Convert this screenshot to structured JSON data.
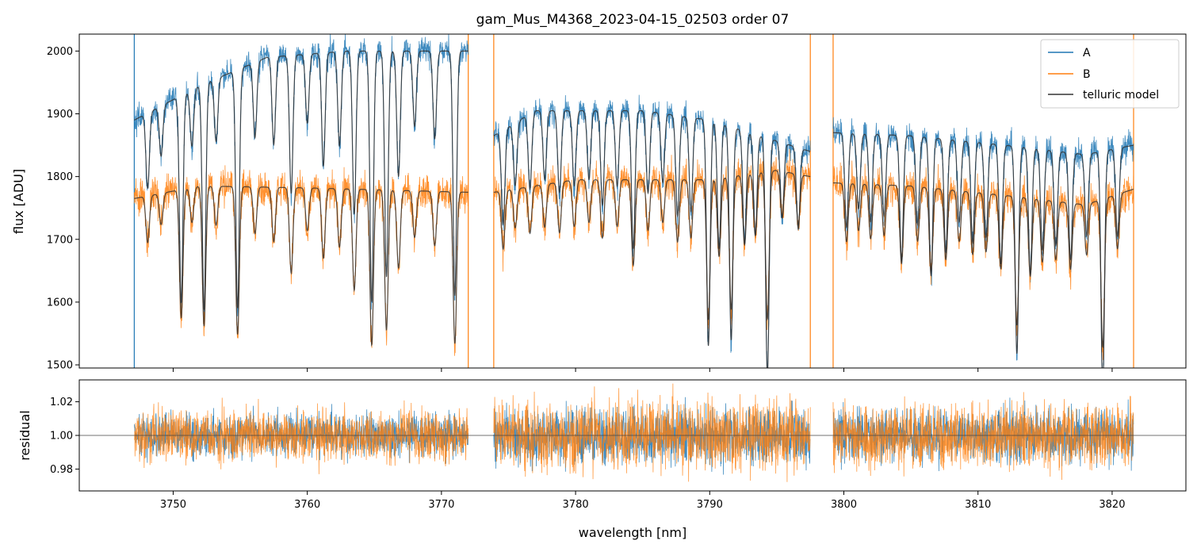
{
  "chart_data": [
    {
      "type": "line",
      "title": "gam_Mus_M4368_2023-04-15_02503  order 07",
      "xlabel": "",
      "ylabel": "flux [ADU]",
      "xlim": [
        3743.0,
        3825.5
      ],
      "ylim": [
        1495,
        2027
      ],
      "yticks": [
        1500,
        1600,
        1700,
        1800,
        1900,
        2000
      ],
      "xticks": [
        3750,
        3760,
        3770,
        3780,
        3790,
        3800,
        3810,
        3820
      ],
      "legend": {
        "placement": "top-right",
        "entries": [
          "A",
          "B",
          "telluric model"
        ]
      },
      "colors": {
        "A": "#1f77b4",
        "B": "#ff7f0e",
        "model": "#333333"
      },
      "segments": [
        [
          3747.1,
          3772.0
        ],
        [
          3773.9,
          3797.5
        ],
        [
          3799.2,
          3821.6
        ]
      ],
      "series": [
        {
          "name": "A",
          "continuum": [
            [
              3747.1,
              1890
            ],
            [
              3752,
              1945
            ],
            [
              3757,
              1990
            ],
            [
              3763,
              2000
            ],
            [
              3772.0,
              2000
            ],
            [
              3773.9,
              1865
            ],
            [
              3777,
              1905
            ],
            [
              3785,
              1905
            ],
            [
              3790,
              1890
            ],
            [
              3797.5,
              1840
            ],
            [
              3799.2,
              1870
            ],
            [
              3805,
              1865
            ],
            [
              3812,
              1850
            ],
            [
              3818,
              1835
            ],
            [
              3821.6,
              1850
            ]
          ],
          "noise": 16
        },
        {
          "name": "B",
          "continuum": [
            [
              3747.1,
              1765
            ],
            [
              3752,
              1785
            ],
            [
              3760,
              1782
            ],
            [
              3772.0,
              1775
            ],
            [
              3773.9,
              1775
            ],
            [
              3780,
              1795
            ],
            [
              3790,
              1795
            ],
            [
              3795,
              1810
            ],
            [
              3797.5,
              1800
            ],
            [
              3799.2,
              1790
            ],
            [
              3805,
              1785
            ],
            [
              3812,
              1770
            ],
            [
              3818,
              1755
            ],
            [
              3821.6,
              1780
            ]
          ],
          "noise": 20
        },
        {
          "name": "telluric model"
        }
      ],
      "absorption_lines": [
        [
          3748.1,
          120
        ],
        [
          3749.1,
          80
        ],
        [
          3750.6,
          330
        ],
        [
          3751.4,
          90
        ],
        [
          3752.3,
          360
        ],
        [
          3753.2,
          100
        ],
        [
          3754.8,
          380
        ],
        [
          3756.1,
          120
        ],
        [
          3757.5,
          140
        ],
        [
          3758.8,
          220
        ],
        [
          3760.0,
          110
        ],
        [
          3761.2,
          180
        ],
        [
          3762.4,
          150
        ],
        [
          3763.5,
          260
        ],
        [
          3764.8,
          400
        ],
        [
          3765.9,
          360
        ],
        [
          3766.8,
          200
        ],
        [
          3768.0,
          120
        ],
        [
          3769.5,
          140
        ],
        [
          3771.0,
          390
        ],
        [
          3774.6,
          150
        ],
        [
          3775.5,
          100
        ],
        [
          3776.6,
          120
        ],
        [
          3777.7,
          110
        ],
        [
          3778.8,
          130
        ],
        [
          3779.9,
          120
        ],
        [
          3781.0,
          110
        ],
        [
          3782.0,
          150
        ],
        [
          3783.1,
          120
        ],
        [
          3784.3,
          220
        ],
        [
          3785.4,
          130
        ],
        [
          3786.5,
          110
        ],
        [
          3787.6,
          160
        ],
        [
          3788.6,
          150
        ],
        [
          3789.9,
          360
        ],
        [
          3790.7,
          200
        ],
        [
          3791.6,
          340
        ],
        [
          3792.6,
          180
        ],
        [
          3793.4,
          160
        ],
        [
          3794.3,
          380
        ],
        [
          3795.4,
          120
        ],
        [
          3796.6,
          130
        ],
        [
          3800.2,
          150
        ],
        [
          3801.1,
          120
        ],
        [
          3802.0,
          140
        ],
        [
          3803.0,
          130
        ],
        [
          3804.3,
          200
        ],
        [
          3805.5,
          140
        ],
        [
          3806.5,
          220
        ],
        [
          3807.6,
          180
        ],
        [
          3808.6,
          130
        ],
        [
          3809.6,
          160
        ],
        [
          3810.6,
          150
        ],
        [
          3811.7,
          190
        ],
        [
          3812.9,
          330
        ],
        [
          3813.9,
          200
        ],
        [
          3814.8,
          160
        ],
        [
          3815.8,
          150
        ],
        [
          3816.9,
          170
        ],
        [
          3818.1,
          130
        ],
        [
          3819.3,
          380
        ],
        [
          3820.4,
          140
        ]
      ],
      "vertical_lines": [
        {
          "x": 3747.1,
          "color": "#1f77b4"
        },
        {
          "x": 3772.0,
          "color": "#ff7f0e"
        },
        {
          "x": 3773.9,
          "color": "#ff7f0e"
        },
        {
          "x": 3797.5,
          "color": "#ff7f0e"
        },
        {
          "x": 3799.2,
          "color": "#ff7f0e"
        },
        {
          "x": 3821.6,
          "color": "#ff7f0e"
        }
      ]
    },
    {
      "type": "line",
      "title": "",
      "xlabel": "wavelength [nm]",
      "ylabel": "residual",
      "xlim": [
        3743.0,
        3825.5
      ],
      "ylim": [
        0.967,
        1.033
      ],
      "yticks": [
        0.98,
        1.0,
        1.02
      ],
      "xticks": [
        3750,
        3760,
        3770,
        3780,
        3790,
        3800,
        3810,
        3820
      ],
      "reference_line": 1.0,
      "series": [
        {
          "name": "A",
          "center": 1.0,
          "noise": 0.009
        },
        {
          "name": "B",
          "center": 1.0,
          "noise": 0.011
        }
      ]
    }
  ]
}
